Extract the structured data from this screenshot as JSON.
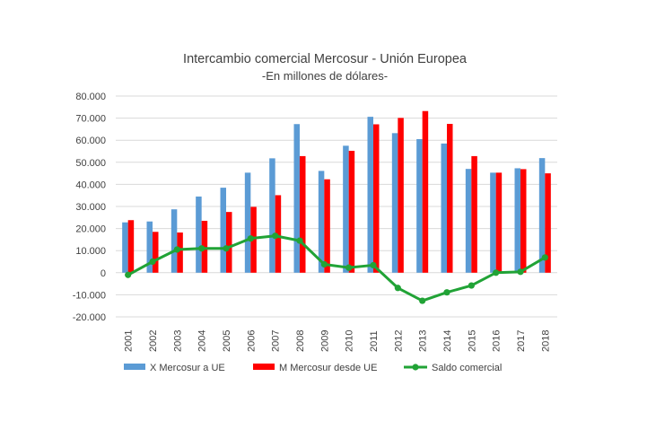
{
  "chart_data": {
    "type": "bar",
    "title": "Intercambio comercial Mercosur - Unión Europea",
    "subtitle": "-En millones de dólares-",
    "categories": [
      "2001",
      "2002",
      "2003",
      "2004",
      "2005",
      "2006",
      "2007",
      "2008",
      "2009",
      "2010",
      "2011",
      "2012",
      "2013",
      "2014",
      "2015",
      "2016",
      "2017",
      "2018"
    ],
    "series": [
      {
        "name": "X Mercosur a UE",
        "type": "bar",
        "color": "#5B9BD5",
        "values": [
          22800,
          23200,
          28700,
          34500,
          38500,
          45300,
          51800,
          67300,
          46100,
          57500,
          70600,
          63200,
          60500,
          58500,
          47000,
          45300,
          47300,
          51900
        ]
      },
      {
        "name": "M Mercosur desde UE",
        "type": "bar",
        "color": "#FF0000",
        "values": [
          23800,
          18500,
          18200,
          23500,
          27500,
          29800,
          35100,
          52800,
          42300,
          55200,
          67200,
          70100,
          73200,
          67400,
          52800,
          45300,
          46900,
          45000
        ]
      },
      {
        "name": "Saldo comercial",
        "type": "line",
        "color": "#21A336",
        "values": [
          -1000,
          5000,
          10500,
          11000,
          11000,
          15500,
          16700,
          14500,
          3800,
          2300,
          3400,
          -6900,
          -12700,
          -8900,
          -5800,
          0,
          400,
          6900
        ]
      }
    ],
    "ytick_labels": [
      "80.000",
      "70.000",
      "60.000",
      "50.000",
      "40.000",
      "30.000",
      "20.000",
      "10.000",
      "0",
      "-10.000",
      "-20.000"
    ],
    "ylim": [
      -20000,
      80000
    ],
    "grid": true,
    "legend_position": "bottom-left"
  }
}
